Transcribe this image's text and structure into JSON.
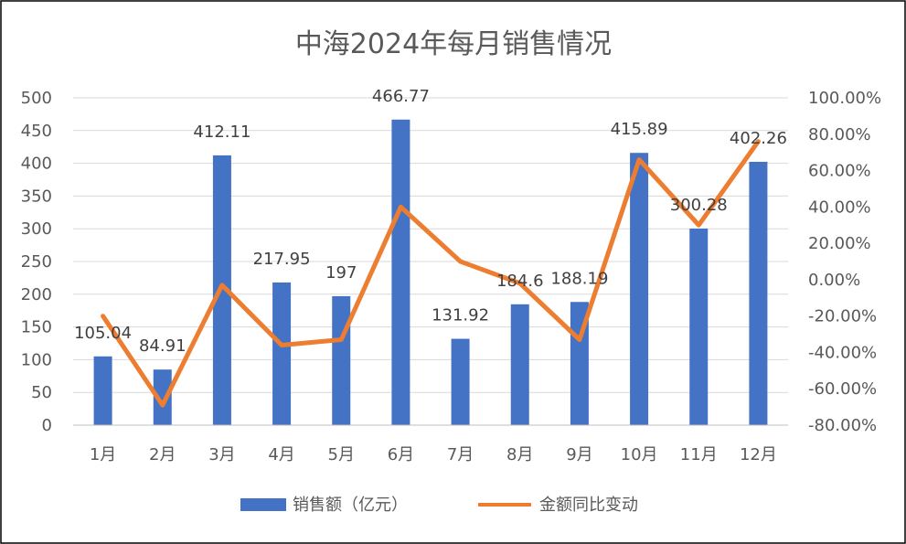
{
  "chart_data": {
    "type": "bar",
    "title": "中海2024年每月销售情况",
    "categories": [
      "1月",
      "2月",
      "3月",
      "4月",
      "5月",
      "6月",
      "7月",
      "8月",
      "9月",
      "10月",
      "11月",
      "12月"
    ],
    "series": [
      {
        "name": "销售额（亿元）",
        "type": "bar",
        "axis": "left",
        "color": "#4472C4",
        "values": [
          105.04,
          84.91,
          412.11,
          217.95,
          197,
          466.77,
          131.92,
          184.6,
          188.19,
          415.89,
          300.28,
          402.26
        ],
        "labels": [
          "105.04",
          "84.91",
          "412.11",
          "217.95",
          "197",
          "466.77",
          "131.92",
          "184.6",
          "188.19",
          "415.89",
          "300.28",
          "402.26"
        ]
      },
      {
        "name": "金额同比变动",
        "type": "line",
        "axis": "right",
        "color": "#ED7D31",
        "values": [
          -20,
          -69,
          -3,
          -36,
          -33,
          40,
          10,
          -2,
          -33,
          66,
          30,
          76
        ]
      }
    ],
    "y_left": {
      "ylim": [
        0,
        500
      ],
      "ticks": [
        "0",
        "50",
        "100",
        "150",
        "200",
        "250",
        "300",
        "350",
        "400",
        "450",
        "500"
      ]
    },
    "y_right": {
      "ylim": [
        -80,
        100
      ],
      "ticks": [
        "-80.00%",
        "-60.00%",
        "-40.00%",
        "-20.00%",
        "0.00%",
        "20.00%",
        "40.00%",
        "60.00%",
        "80.00%",
        "100.00%"
      ]
    },
    "grid": true,
    "legend": "bottom"
  }
}
